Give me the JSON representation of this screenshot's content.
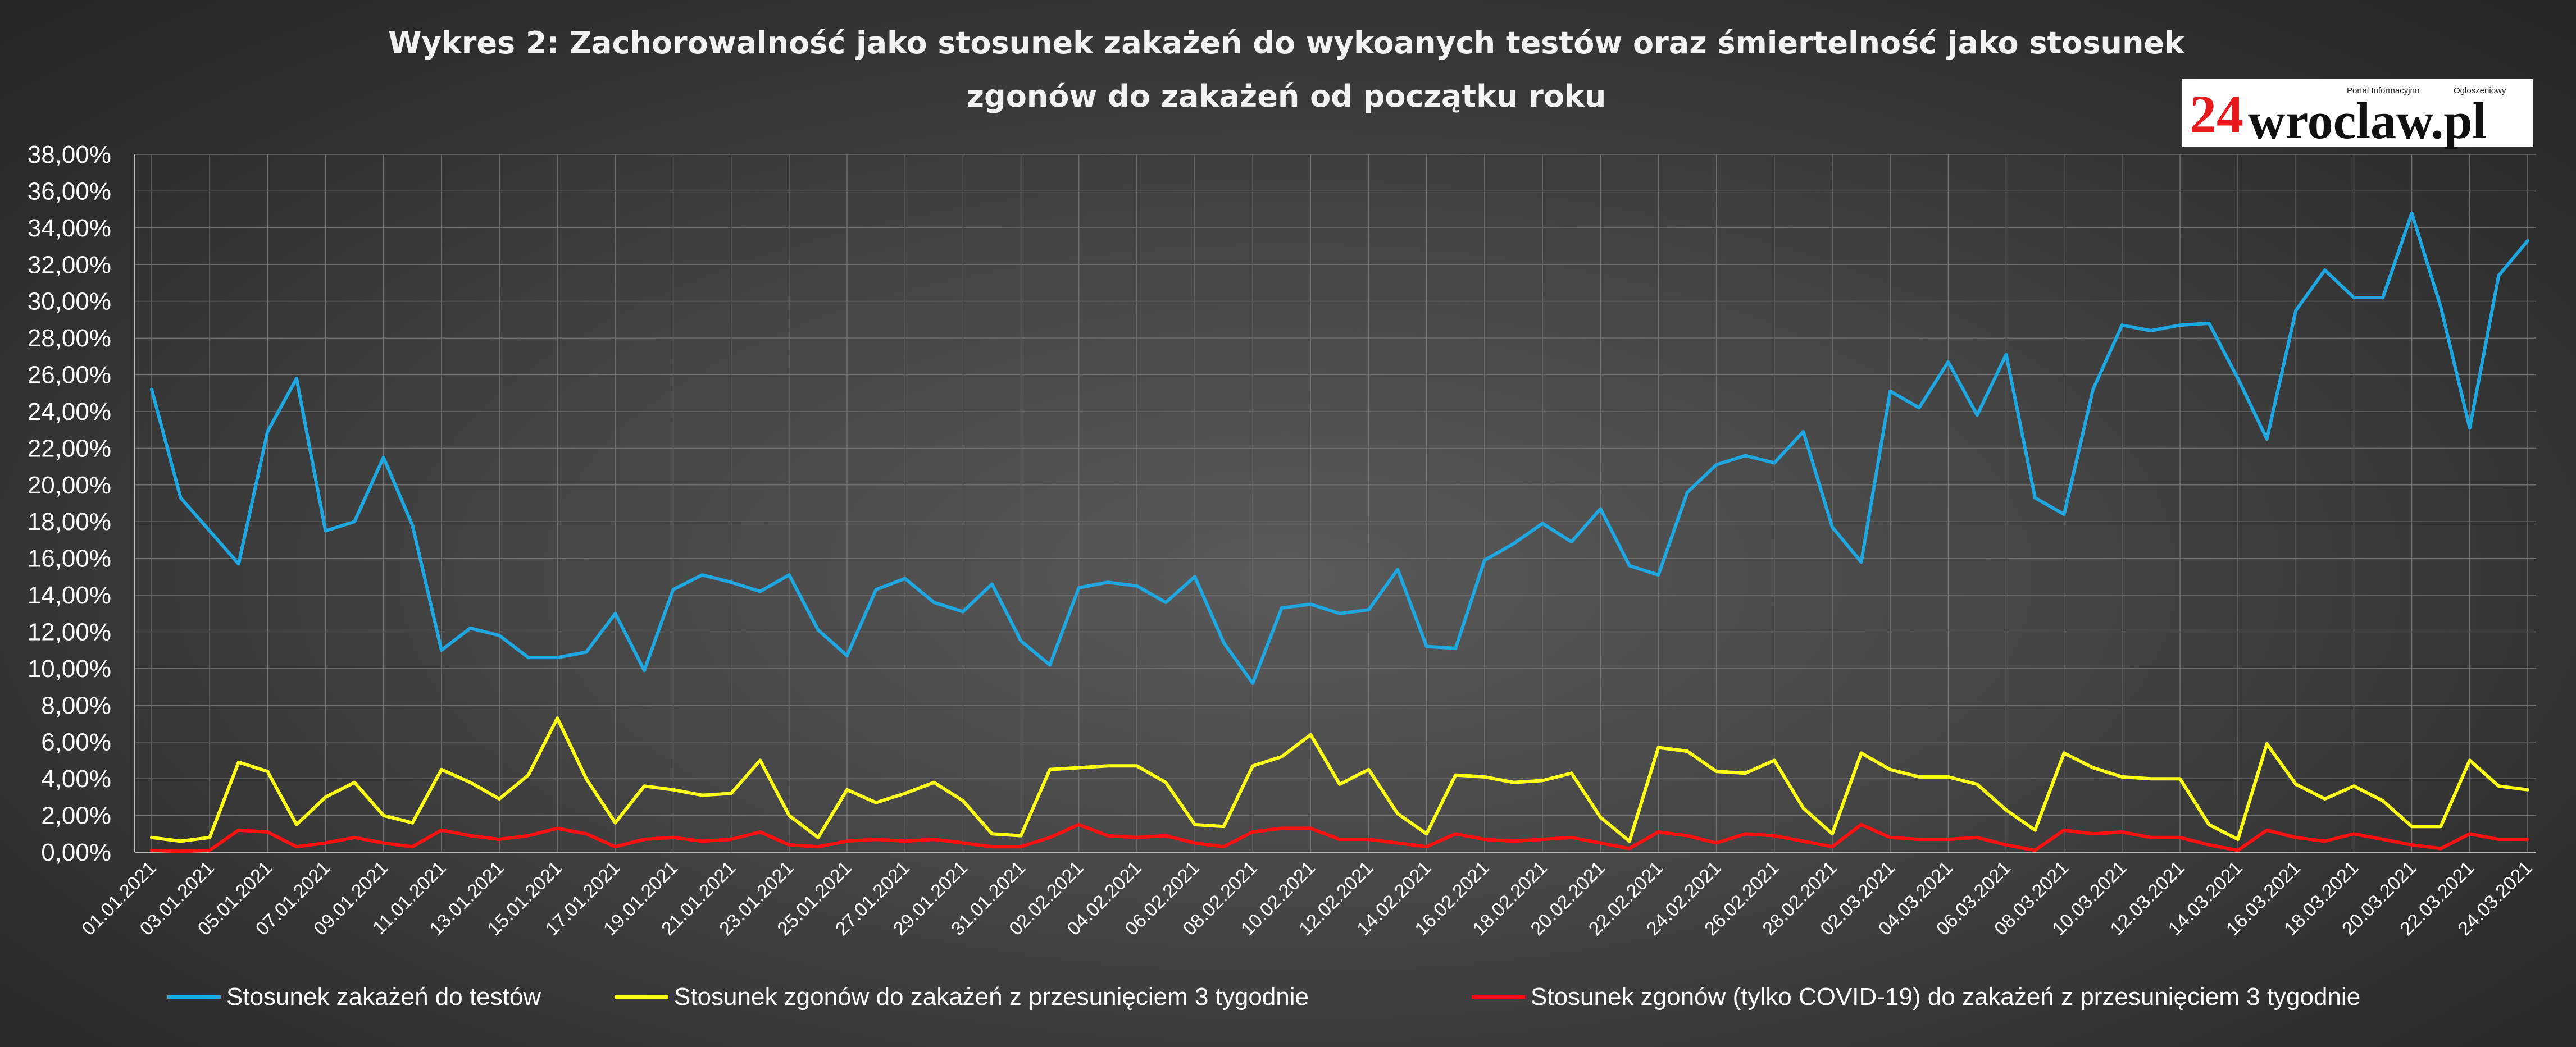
{
  "header": {
    "title_line1": "Wykres 2: Zachorowalność jako stosunek zakażeń do wykoanych testów oraz śmiertelność jako stosunek",
    "title_line2": "zgonów do zakażeń od początku roku"
  },
  "logo": {
    "number": "24",
    "name": "wroclaw.pl",
    "tagline_left": "Portal Informacyjno",
    "tagline_right": "Ogłoszeniowy"
  },
  "chart_data": {
    "type": "line",
    "ylim": [
      0,
      38
    ],
    "y_unit": "%",
    "y_ticks": [
      "0,00%",
      "2,00%",
      "4,00%",
      "6,00%",
      "8,00%",
      "10,00%",
      "12,00%",
      "14,00%",
      "16,00%",
      "18,00%",
      "20,00%",
      "22,00%",
      "24,00%",
      "26,00%",
      "28,00%",
      "30,00%",
      "32,00%",
      "34,00%",
      "36,00%",
      "38,00%"
    ],
    "x_tick_labels": [
      "01.01.2021",
      "03.01.2021",
      "05.01.2021",
      "07.01.2021",
      "09.01.2021",
      "11.01.2021",
      "13.01.2021",
      "15.01.2021",
      "17.01.2021",
      "19.01.2021",
      "21.01.2021",
      "23.01.2021",
      "25.01.2021",
      "27.01.2021",
      "29.01.2021",
      "31.01.2021",
      "02.02.2021",
      "04.02.2021",
      "06.02.2021",
      "08.02.2021",
      "10.02.2021",
      "12.02.2021",
      "14.02.2021",
      "16.02.2021",
      "18.02.2021",
      "20.02.2021",
      "22.02.2021",
      "24.02.2021",
      "26.02.2021",
      "28.02.2021",
      "02.03.2021",
      "04.03.2021",
      "06.03.2021",
      "08.03.2021",
      "10.03.2021",
      "12.03.2021",
      "14.03.2021",
      "16.03.2021",
      "18.03.2021",
      "20.03.2021",
      "22.03.2021",
      "24.03.2021"
    ],
    "grid": true,
    "legend_position": "bottom",
    "series": [
      {
        "name": "Stosunek zakażeń do testów",
        "color": "#1ea7e1",
        "values": [
          25.2,
          19.3,
          17.5,
          15.7,
          22.9,
          25.8,
          17.5,
          18.0,
          21.5,
          17.8,
          11.0,
          12.2,
          11.8,
          10.6,
          10.6,
          10.9,
          13.0,
          9.9,
          14.3,
          15.1,
          14.7,
          14.2,
          15.1,
          12.1,
          10.7,
          14.3,
          14.9,
          13.6,
          13.1,
          14.6,
          11.5,
          10.2,
          14.4,
          14.7,
          14.5,
          13.6,
          15.0,
          11.4,
          9.2,
          13.3,
          13.5,
          13.0,
          13.2,
          15.4,
          11.2,
          11.1,
          15.9,
          16.8,
          17.9,
          16.9,
          18.7,
          15.6,
          15.1,
          19.6,
          21.1,
          21.6,
          21.2,
          22.9,
          17.7,
          15.8,
          25.1,
          24.2,
          26.7,
          23.8,
          27.1,
          19.3,
          18.4,
          25.2,
          28.7,
          28.4,
          28.7,
          28.8,
          25.8,
          22.5,
          29.5,
          31.7,
          30.2,
          30.2,
          34.8,
          29.7,
          23.1,
          31.4,
          33.3
        ]
      },
      {
        "name": "Stosunek zgonów do zakażeń z przesunięciem 3 tygodnie",
        "color": "#ffff1a",
        "values": [
          0.8,
          0.6,
          0.8,
          4.9,
          4.4,
          1.5,
          3.0,
          3.8,
          2.0,
          1.6,
          4.5,
          3.8,
          2.9,
          4.2,
          7.3,
          4.0,
          1.6,
          3.6,
          3.4,
          3.1,
          3.2,
          5.0,
          2.0,
          0.8,
          3.4,
          2.7,
          3.2,
          3.8,
          2.8,
          1.0,
          0.9,
          4.5,
          4.6,
          4.7,
          4.7,
          3.8,
          1.5,
          1.4,
          4.7,
          5.2,
          6.4,
          3.7,
          4.5,
          2.1,
          1.0,
          4.2,
          4.1,
          3.8,
          3.9,
          4.3,
          1.9,
          0.6,
          5.7,
          5.5,
          4.4,
          4.3,
          5.0,
          2.4,
          1.0,
          5.4,
          4.5,
          4.1,
          4.1,
          3.7,
          2.3,
          1.2,
          5.4,
          4.6,
          4.1,
          4.0,
          4.0,
          1.5,
          0.7,
          5.9,
          3.7,
          2.9,
          3.6,
          2.8,
          1.4,
          1.4,
          5.0,
          3.6,
          3.4
        ]
      },
      {
        "name": "Stosunek zgonów (tylko COVID-19) do zakażeń z przesunięciem 3 tygodnie",
        "color": "#ff1010",
        "values": [
          0.1,
          0.05,
          0.1,
          1.2,
          1.1,
          0.3,
          0.5,
          0.8,
          0.5,
          0.3,
          1.2,
          0.9,
          0.7,
          0.9,
          1.3,
          1.0,
          0.3,
          0.7,
          0.8,
          0.6,
          0.7,
          1.1,
          0.4,
          0.3,
          0.6,
          0.7,
          0.6,
          0.7,
          0.5,
          0.3,
          0.3,
          0.8,
          1.5,
          0.9,
          0.8,
          0.9,
          0.5,
          0.3,
          1.1,
          1.3,
          1.3,
          0.7,
          0.7,
          0.5,
          0.3,
          1.0,
          0.7,
          0.6,
          0.7,
          0.8,
          0.5,
          0.2,
          1.1,
          0.9,
          0.5,
          1.0,
          0.9,
          0.6,
          0.3,
          1.5,
          0.8,
          0.7,
          0.7,
          0.8,
          0.4,
          0.1,
          1.2,
          1.0,
          1.1,
          0.8,
          0.8,
          0.4,
          0.1,
          1.2,
          0.8,
          0.6,
          1.0,
          0.7,
          0.4,
          0.2,
          1.0,
          0.7,
          0.7
        ]
      }
    ]
  }
}
